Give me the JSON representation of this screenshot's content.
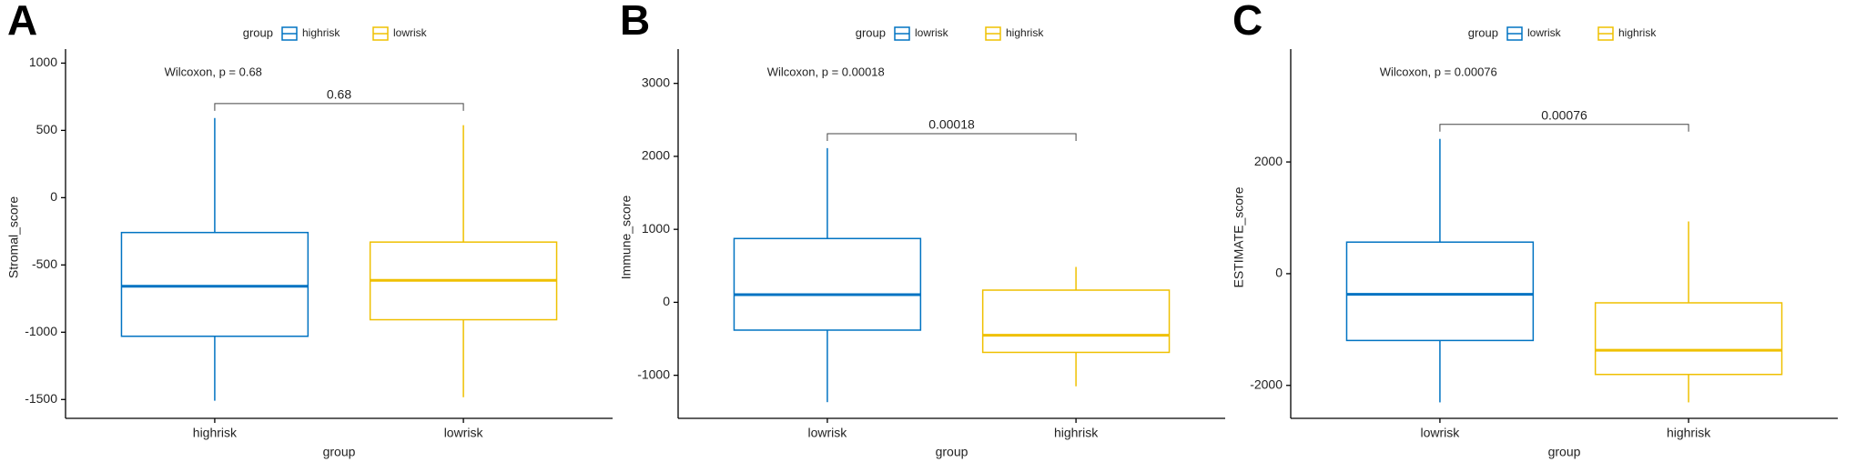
{
  "chart_data": [
    {
      "type": "box",
      "panel_label": "A",
      "legend_title": "group",
      "x_label": "group",
      "y_label": "Stromal_score",
      "test_label": "Wilcoxon, p = 0.68",
      "bracket_label": "0.68",
      "categories": [
        "highrisk",
        "lowrisk"
      ],
      "colors": [
        "#0073C2",
        "#EFC000"
      ],
      "stats": {
        "min": [
          -1509,
          -1483
        ],
        "q1": [
          -1030,
          -907
        ],
        "median": [
          -658,
          -614
        ],
        "q3": [
          -259,
          -330
        ],
        "max": [
          592,
          539
        ]
      },
      "ylim": [
        -1640,
        1050
      ],
      "yticks": [
        -1500,
        -1000,
        -500,
        0,
        500,
        1000
      ]
    },
    {
      "type": "box",
      "panel_label": "B",
      "legend_title": "group",
      "x_label": "group",
      "y_label": "Immune_score",
      "test_label": "Wilcoxon, p = 0.00018",
      "bracket_label": "0.00018",
      "categories": [
        "lowrisk",
        "highrisk"
      ],
      "colors": [
        "#0073C2",
        "#EFC000"
      ],
      "stats": {
        "min": [
          -1368,
          -1151
        ],
        "q1": [
          -381,
          -686
        ],
        "median": [
          105,
          -452
        ],
        "q3": [
          874,
          167
        ],
        "max": [
          2113,
          485
        ]
      },
      "ylim": [
        -1590,
        3370
      ],
      "yticks": [
        -1000,
        0,
        1000,
        2000,
        3000
      ]
    },
    {
      "type": "box",
      "panel_label": "C",
      "legend_title": "group",
      "x_label": "group",
      "y_label": "ESTIMATE_score",
      "test_label": "Wilcoxon, p = 0.00076",
      "bracket_label": "0.00076",
      "categories": [
        "lowrisk",
        "highrisk"
      ],
      "colors": [
        "#0073C2",
        "#EFC000"
      ],
      "stats": {
        "min": [
          -2304,
          -2304
        ],
        "q1": [
          -1196,
          -1804
        ],
        "median": [
          -370,
          -1370
        ],
        "q3": [
          565,
          -522
        ],
        "max": [
          2413,
          935
        ]
      },
      "ylim": [
        -2590,
        3890
      ],
      "yticks": [
        -2000,
        0,
        2000
      ]
    }
  ]
}
